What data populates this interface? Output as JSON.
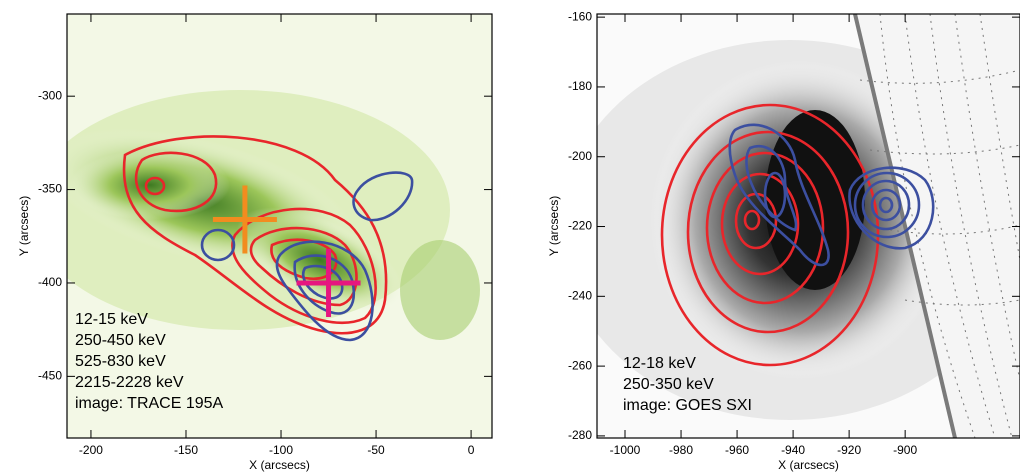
{
  "chart_data": [
    {
      "type": "contour",
      "xlabel": "X (arcsecs)",
      "ylabel": "Y (arcsecs)",
      "xlim": [
        -212.6,
        11
      ],
      "ylim": [
        -483,
        -256
      ],
      "xticks": [
        -200,
        -150,
        -100,
        -50,
        0
      ],
      "yticks": [
        -450,
        -400,
        -350,
        -300
      ],
      "series": [
        {
          "name": "12-15 keV",
          "color": "#e8262b"
        },
        {
          "name": "250-450 keV",
          "color": "#3c4fa0"
        },
        {
          "name": "525-830 keV",
          "color": "#e6177f",
          "x": [
            -75
          ],
          "y": [
            -400
          ]
        },
        {
          "name": "2215-2228 keV",
          "color": "#f28c1f",
          "x": [
            -119
          ],
          "y": [
            -366
          ]
        }
      ],
      "image_label": "image: TRACE 195A",
      "image_color": "#2d6a1f"
    },
    {
      "type": "contour",
      "xlabel": "X (arcsecs)",
      "ylabel": "Y (arcsecs)",
      "xlim": [
        -1010,
        -859
      ],
      "ylim": [
        -280.6,
        -159.1
      ],
      "xticks": [
        -1000,
        -980,
        -960,
        -940,
        -920,
        -900
      ],
      "yticks": [
        -280,
        -260,
        -240,
        -220,
        -200,
        -180,
        -160
      ],
      "series": [
        {
          "name": "12-18 keV",
          "color": "#e8262b"
        },
        {
          "name": "250-350 keV",
          "color": "#3c4fa0"
        }
      ],
      "image_label": "image: GOES SXI",
      "image_color": "#000000"
    }
  ]
}
